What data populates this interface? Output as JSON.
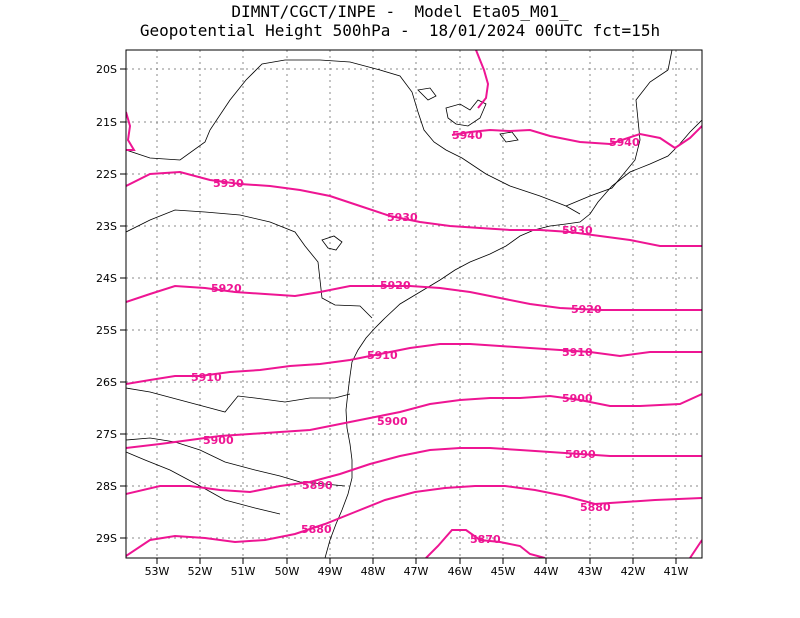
{
  "header": {
    "line1": "DIMNT/CGCT/INPE -  Model Eta05_M01_",
    "line2": "Geopotential Height 500hPa -  18/01/2024 00UTC fct=15h"
  },
  "colors": {
    "contour": "#ee1593",
    "coast": "#000000",
    "grid": "#888888"
  },
  "axes": {
    "lat_labels": [
      "20S",
      "21S",
      "22S",
      "23S",
      "24S",
      "25S",
      "26S",
      "27S",
      "28S",
      "29S"
    ],
    "lon_labels": [
      "53W",
      "52W",
      "51W",
      "50W",
      "49W",
      "48W",
      "47W",
      "46W",
      "45W",
      "44W",
      "43W",
      "42W",
      "41W"
    ]
  },
  "contour_labels": [
    {
      "id": "5940a",
      "text": "5940"
    },
    {
      "id": "5940b",
      "text": "5940"
    },
    {
      "id": "5930a",
      "text": "5930"
    },
    {
      "id": "5930b",
      "text": "5930"
    },
    {
      "id": "5930c",
      "text": "5930"
    },
    {
      "id": "5920a",
      "text": "5920"
    },
    {
      "id": "5920b",
      "text": "5920"
    },
    {
      "id": "5920c",
      "text": "5920"
    },
    {
      "id": "5910a",
      "text": "5910"
    },
    {
      "id": "5910b",
      "text": "5910"
    },
    {
      "id": "5910c",
      "text": "5910"
    },
    {
      "id": "5900a",
      "text": "5900"
    },
    {
      "id": "5900b",
      "text": "5900"
    },
    {
      "id": "5900c",
      "text": "5900"
    },
    {
      "id": "5890a",
      "text": "5890"
    },
    {
      "id": "5890b",
      "text": "5890"
    },
    {
      "id": "5880a",
      "text": "5880"
    },
    {
      "id": "5880b",
      "text": "5880"
    },
    {
      "id": "5870a",
      "text": "5870"
    }
  ]
}
